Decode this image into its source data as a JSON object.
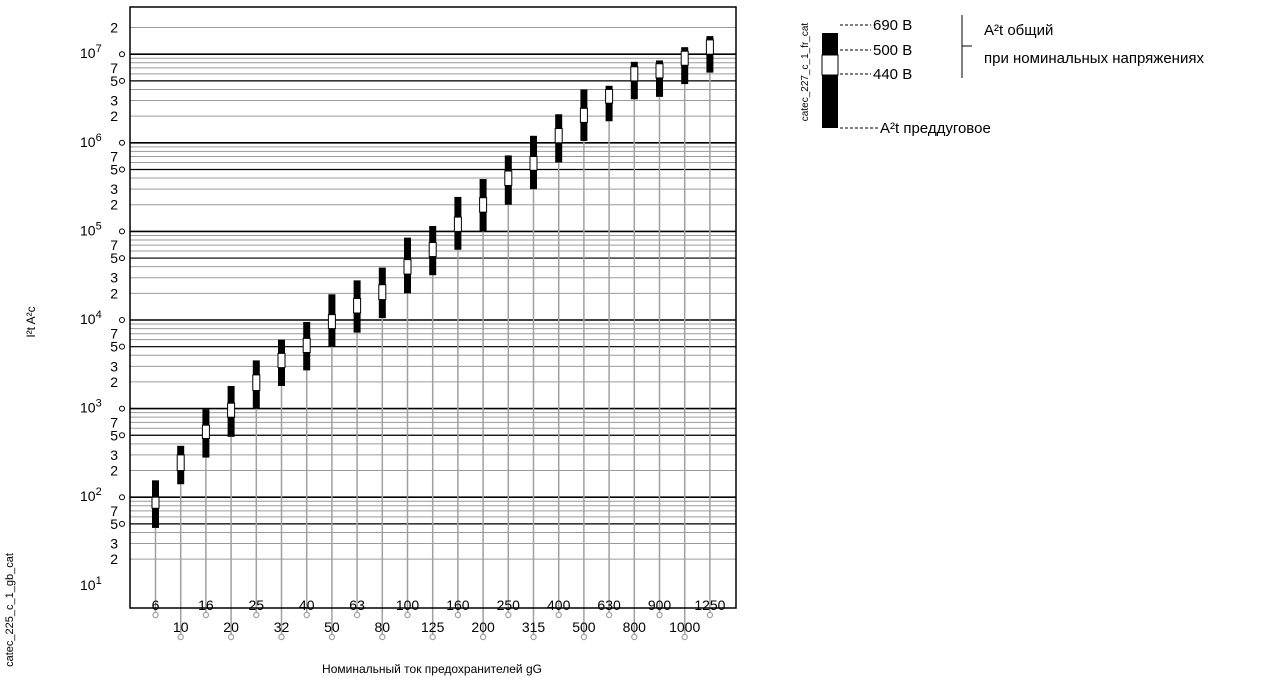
{
  "chart_data": {
    "type": "bar",
    "chart_kind": "i2t range bars (pre-arcing and total) per fuse rating",
    "scale_y": "log",
    "ylim": [
      10,
      20000000
    ],
    "ylabel": "I²t A²c",
    "xlabel": "Номинальный ток предохранителей gG",
    "grid": true,
    "y_tick_labels": {
      "decades": [
        {
          "base": "10",
          "exp": "1"
        },
        {
          "base": "10",
          "exp": "2"
        },
        {
          "base": "10",
          "exp": "3"
        },
        {
          "base": "10",
          "exp": "4"
        },
        {
          "base": "10",
          "exp": "5"
        },
        {
          "base": "10",
          "exp": "6"
        },
        {
          "base": "10",
          "exp": "7"
        }
      ],
      "minor": [
        "2",
        "3",
        "5",
        "7"
      ],
      "top": "2"
    },
    "categories": [
      "6",
      "10",
      "16",
      "20",
      "25",
      "32",
      "40",
      "50",
      "63",
      "80",
      "100",
      "125",
      "160",
      "200",
      "250",
      "315",
      "400",
      "500",
      "630",
      "800",
      "900",
      "1000",
      "1250"
    ],
    "series": [
      {
        "name": "A²t преддуговое",
        "values": [
          45,
          140,
          280,
          480,
          1000,
          1800,
          2700,
          5000,
          7200,
          10500,
          20000,
          32000,
          62000,
          100000,
          200000,
          300000,
          600000,
          1050000,
          1750000,
          3100000,
          3300000,
          4600000,
          6200000
        ]
      },
      {
        "name": "440 В",
        "values": [
          75,
          200,
          460,
          800,
          1600,
          2900,
          4300,
          8000,
          12000,
          17000,
          33000,
          52000,
          100000,
          165000,
          330000,
          490000,
          1000000,
          1700000,
          2800000,
          5000000,
          5400000,
          7500000,
          10000000
        ]
      },
      {
        "name": "500 В",
        "values": [
          100,
          300,
          650,
          1150,
          2400,
          4200,
          6200,
          11500,
          17500,
          25000,
          48000,
          75000,
          145000,
          240000,
          480000,
          700000,
          1450000,
          2450000,
          4000000,
          7200000,
          7800000,
          10800000,
          14500000
        ]
      },
      {
        "name": "690 В",
        "values": [
          155,
          380,
          980,
          1800,
          3500,
          6000,
          9500,
          19500,
          28000,
          39000,
          85000,
          115000,
          245000,
          390000,
          720000,
          1200000,
          2100000,
          4000000,
          4400000,
          8200000,
          8500000,
          12000000,
          16000000
        ]
      }
    ],
    "legend": {
      "labels": [
        "690 В",
        "500 В",
        "440 В",
        "A²t преддуговое"
      ],
      "bracket_line1": "A²t общий",
      "bracket_line2": "при номинальных напряжениях",
      "caption": "catec_227_c_1_fr_cat",
      "placement": "top-right"
    }
  },
  "side_caption": "catec_225_c_1_gb_cat",
  "colors": {
    "grid": "#9a9a9a",
    "frame": "#000000",
    "stem": "#a0a0a0",
    "bar": "#000000"
  }
}
